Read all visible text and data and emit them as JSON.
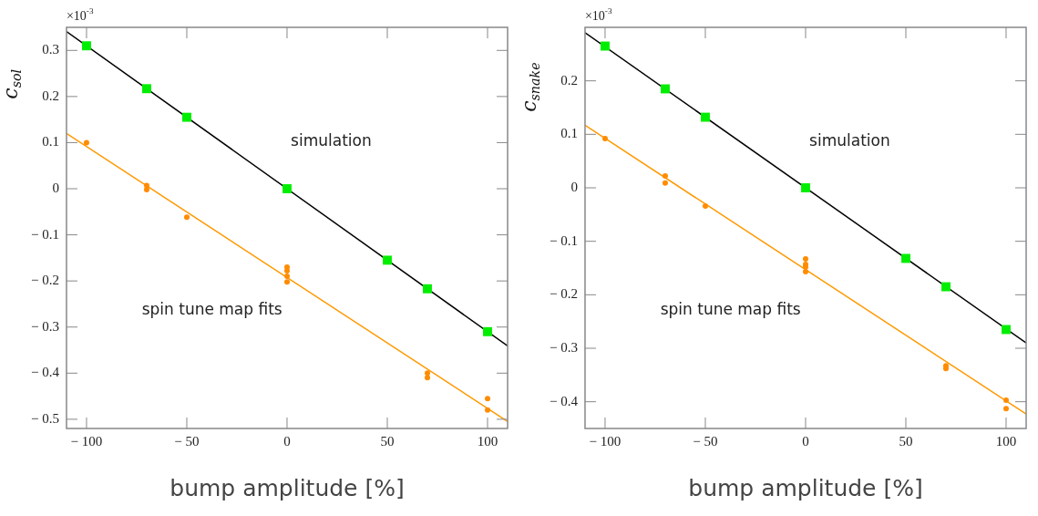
{
  "chart_data": [
    {
      "type": "scatter",
      "xlabel": "bump amplitude [%]",
      "ylabel": "c$_{sol}$",
      "xlim": [
        -110,
        110
      ],
      "xticks": [
        -100,
        -50,
        0,
        50,
        100
      ],
      "ylim": [
        -0.52,
        0.35
      ],
      "yticks": [
        -0.5,
        -0.4,
        -0.3,
        -0.2,
        -0.1,
        0,
        0.1,
        0.2,
        0.3
      ],
      "grid": false,
      "legend": false,
      "annotations": [
        "×10$^{-3}$",
        "simulation",
        "spin tune map fits"
      ],
      "series": [
        {
          "type": "line",
          "color": "#000000",
          "marker": "none",
          "x": [
            -110,
            110
          ],
          "values": [
            0.341,
            -0.341
          ]
        },
        {
          "type": "line",
          "color": "#ff9900",
          "marker": "none",
          "x": [
            -110,
            110
          ],
          "values": [
            0.12,
            -0.505
          ]
        },
        {
          "color": "#00ee00",
          "marker": "square",
          "x": [
            -100,
            -70,
            -50,
            0,
            50,
            70,
            100
          ],
          "values": [
            0.31,
            0.217,
            0.155,
            0,
            -0.155,
            -0.217,
            -0.31
          ]
        },
        {
          "color": "#ff8c00",
          "marker": "circle",
          "x": [
            -100,
            -70,
            -70,
            -50,
            0,
            0,
            0,
            0,
            70,
            70,
            100,
            100
          ],
          "values": [
            0.1,
            0.007,
            -0.002,
            -0.062,
            -0.17,
            -0.178,
            -0.19,
            -0.202,
            -0.4,
            -0.41,
            -0.455,
            -0.48
          ]
        }
      ]
    },
    {
      "type": "scatter",
      "xlabel": "bump amplitude [%]",
      "ylabel": "c$_{snake}$",
      "xlim": [
        -110,
        110
      ],
      "xticks": [
        -100,
        -50,
        0,
        50,
        100
      ],
      "ylim": [
        -0.45,
        0.3
      ],
      "yticks": [
        -0.4,
        -0.3,
        -0.2,
        -0.1,
        0,
        0.1,
        0.2
      ],
      "grid": false,
      "legend": false,
      "annotations": [
        "×10$^{-3}$",
        "simulation",
        "spin tune map fits"
      ],
      "series": [
        {
          "type": "line",
          "color": "#000000",
          "marker": "none",
          "x": [
            -110,
            110
          ],
          "values": [
            0.29,
            -0.29
          ]
        },
        {
          "type": "line",
          "color": "#ff9900",
          "marker": "none",
          "x": [
            -110,
            110
          ],
          "values": [
            0.117,
            -0.423
          ]
        },
        {
          "color": "#00ee00",
          "marker": "square",
          "x": [
            -100,
            -70,
            -50,
            0,
            50,
            70,
            100
          ],
          "values": [
            0.265,
            0.185,
            0.132,
            0,
            -0.132,
            -0.185,
            -0.265
          ]
        },
        {
          "color": "#ff8c00",
          "marker": "circle",
          "x": [
            -100,
            -70,
            -70,
            -50,
            0,
            0,
            0,
            0,
            70,
            70,
            100,
            100
          ],
          "values": [
            0.092,
            0.022,
            0.009,
            -0.034,
            -0.133,
            -0.143,
            -0.148,
            -0.157,
            -0.333,
            -0.338,
            -0.397,
            -0.413
          ]
        }
      ]
    }
  ]
}
